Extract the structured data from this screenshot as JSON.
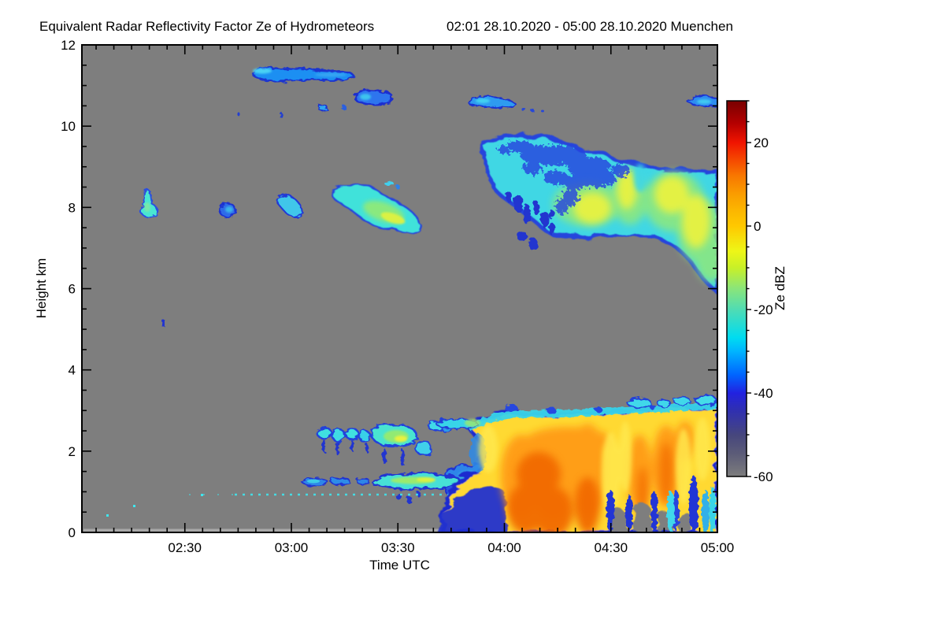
{
  "title": {
    "main": "Equivalent Radar Reflectivity Factor Ze of Hydrometeors",
    "period": "02:01 28.10.2020 - 05:00 28.10.2020 Muenchen"
  },
  "axes": {
    "xlabel": "Time UTC",
    "ylabel": "Height km",
    "x_tick_labels": [
      "02:30",
      "03:00",
      "03:30",
      "04:00",
      "04:30",
      "05:00"
    ],
    "y_tick_labels": [
      "0",
      "2",
      "4",
      "6",
      "8",
      "10",
      "12"
    ]
  },
  "colorbar": {
    "label": "Ze dBZ",
    "tick_labels": [
      "20",
      "0",
      "-20",
      "-40",
      "-60"
    ]
  },
  "chart_data": {
    "type": "heatmap",
    "title": "Equivalent Radar Reflectivity Factor Ze of Hydrometeors",
    "location": "Muenchen",
    "time_start": "02:01 28.10.2020",
    "time_end": "05:00 28.10.2020",
    "xlabel": "Time UTC",
    "ylabel": "Height km",
    "x_ticks": [
      "02:30",
      "03:00",
      "03:30",
      "04:00",
      "04:30",
      "05:00"
    ],
    "x_minor_tick_minutes": 5,
    "ylim": [
      0,
      12
    ],
    "y_ticks": [
      0,
      2,
      4,
      6,
      8,
      10,
      12
    ],
    "y_minor_tick_km": 0.5,
    "colorbar": {
      "label": "Ze dBZ",
      "min": -60,
      "max": 30,
      "ticks": [
        20,
        0,
        -20,
        -40,
        -60
      ],
      "minor_tick_step": 5,
      "palette_top_to_bottom": [
        "#7a0000",
        "#e60e00",
        "#f54600",
        "#fa9e00",
        "#ffc800",
        "#eef617",
        "#c8f028",
        "#8ae57a",
        "#4fdcb4",
        "#00dcf0",
        "#00b4ff",
        "#0064ff",
        "#2222e0",
        "#3c3c96",
        "#46467d",
        "#7d7d7d"
      ]
    },
    "background_no_echo_color": "#7e7e7e",
    "features": [
      {
        "name": "cirrus streak",
        "time": [
          "02:49",
          "03:19"
        ],
        "height_km": [
          11.0,
          11.45
        ],
        "ze_dbz": [
          -45,
          -30
        ]
      },
      {
        "name": "cirrus patch",
        "time": [
          "03:17",
          "03:29"
        ],
        "height_km": [
          10.45,
          10.9
        ],
        "ze_dbz": [
          -45,
          -32
        ]
      },
      {
        "name": "cirrus wisps",
        "time": [
          "03:08",
          "03:15"
        ],
        "height_km": [
          10.35,
          10.6
        ],
        "ze_dbz": [
          -42,
          -30
        ]
      },
      {
        "name": "cirrus streak",
        "time": [
          "03:50",
          "04:06"
        ],
        "height_km": [
          10.4,
          10.8
        ],
        "ze_dbz": [
          -42,
          -28
        ]
      },
      {
        "name": "cirrus streak at right edge",
        "time": [
          "04:51",
          "05:00"
        ],
        "height_km": [
          10.45,
          10.75
        ],
        "ze_dbz": [
          -42,
          -28
        ]
      },
      {
        "name": "altocumulus cell",
        "time": [
          "02:17",
          "02:21"
        ],
        "height_km": [
          7.7,
          8.4
        ],
        "ze_dbz": [
          -30,
          -18
        ]
      },
      {
        "name": "altocumulus cell",
        "time": [
          "02:40",
          "02:45"
        ],
        "height_km": [
          7.7,
          8.1
        ],
        "ze_dbz": [
          -38,
          -28
        ]
      },
      {
        "name": "altocumulus cell",
        "time": [
          "02:56",
          "03:04"
        ],
        "height_km": [
          7.6,
          8.3
        ],
        "ze_dbz": [
          -35,
          -25
        ]
      },
      {
        "name": "altocumulus patch with green core",
        "time": [
          "03:11",
          "03:37"
        ],
        "height_km": [
          7.25,
          8.7
        ],
        "ze_dbz": [
          -35,
          -10
        ]
      },
      {
        "name": "isolated speck",
        "time": [
          "02:24",
          "02:24"
        ],
        "height_km": [
          5.05,
          5.2
        ],
        "ze_dbz": [
          -45,
          -40
        ]
      },
      {
        "name": "descending mid-level cloud deck",
        "time": [
          "03:54",
          "05:00"
        ],
        "height_km": [
          5.9,
          9.7
        ],
        "ze_dbz": [
          -45,
          -5
        ],
        "note": "cyan body with ragged dark-blue speckled top, yellow cores 04:25-04:55 near 7-8.5 km, base sinks to 6 km at right edge, detached blue virga fragments 04:05-04:15"
      },
      {
        "name": "shallow cumulus row",
        "time": [
          "03:07",
          "03:43"
        ],
        "height_km": [
          1.8,
          2.7
        ],
        "ze_dbz": [
          -38,
          -12
        ]
      },
      {
        "name": "stratus strip",
        "time": [
          "03:03",
          "03:51"
        ],
        "height_km": [
          1.0,
          1.5
        ],
        "ze_dbz": [
          -38,
          -15
        ]
      },
      {
        "name": "drizzle dot line",
        "time": [
          "02:44",
          "03:48"
        ],
        "height_km": [
          0.9,
          1.0
        ],
        "ze_dbz": [
          -30,
          -25
        ]
      },
      {
        "name": "precipitating cloud mass",
        "time": [
          "03:41",
          "05:00"
        ],
        "height_km": [
          0,
          3.1
        ],
        "ze_dbz": [
          -40,
          15
        ],
        "note": "yellow body with orange fall streaks, strongest echoes 04:02-04:20 below 1.5 km reaching the ground; ragged blue virga with echo-free gaps below 0.7 km after about 04:30"
      },
      {
        "name": "small cumulus puffs above precipitation",
        "time": [
          "04:34",
          "05:00"
        ],
        "height_km": [
          3.0,
          3.4
        ],
        "ze_dbz": [
          -38,
          -25
        ]
      }
    ]
  }
}
